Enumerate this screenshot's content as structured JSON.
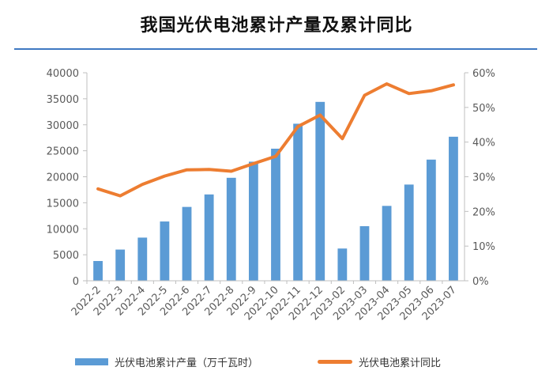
{
  "title": "我国光伏电池累计产量及累计同比",
  "colors": {
    "bar": "#5b9bd5",
    "line": "#ed7d31",
    "axis": "#bfbfbf",
    "accent": "#3f79c2"
  },
  "chart_data": {
    "type": "bar+line",
    "title": "我国光伏电池累计产量及累计同比",
    "categories": [
      "2022-2",
      "2022-3",
      "2022-4",
      "2022-5",
      "2022-6",
      "2022-7",
      "2022-8",
      "2022-9",
      "2022-10",
      "2022-11",
      "2022-12",
      "2023-02",
      "2023-03",
      "2023-04",
      "2023-05",
      "2023-06",
      "2023-07"
    ],
    "series": [
      {
        "name": "光伏电池累计产量（万千瓦时）",
        "type": "bar",
        "axis": "left",
        "values": [
          3800,
          6000,
          8300,
          11400,
          14200,
          16600,
          19800,
          22900,
          25400,
          30200,
          34400,
          6200,
          10500,
          14400,
          18500,
          23300,
          27700
        ]
      },
      {
        "name": "光伏电池累计同比",
        "type": "line",
        "axis": "right",
        "unit": "%",
        "values": [
          26.5,
          24.5,
          27.8,
          30.2,
          32.0,
          32.1,
          31.6,
          33.8,
          35.9,
          44.5,
          47.8,
          41.0,
          53.5,
          56.8,
          54.0,
          54.8,
          56.5
        ]
      }
    ],
    "y_left": {
      "ylim": [
        0,
        40000
      ],
      "ticks": [
        "0",
        "5000",
        "10000",
        "15000",
        "20000",
        "25000",
        "30000",
        "35000",
        "40000"
      ]
    },
    "y_right": {
      "ylim": [
        0,
        60
      ],
      "ticks": [
        "0%",
        "10%",
        "20%",
        "30%",
        "40%",
        "50%",
        "60%"
      ]
    },
    "legend_position": "bottom"
  },
  "legend": {
    "bar_label": "光伏电池累计产量（万千瓦时）",
    "line_label": "光伏电池累计同比"
  }
}
